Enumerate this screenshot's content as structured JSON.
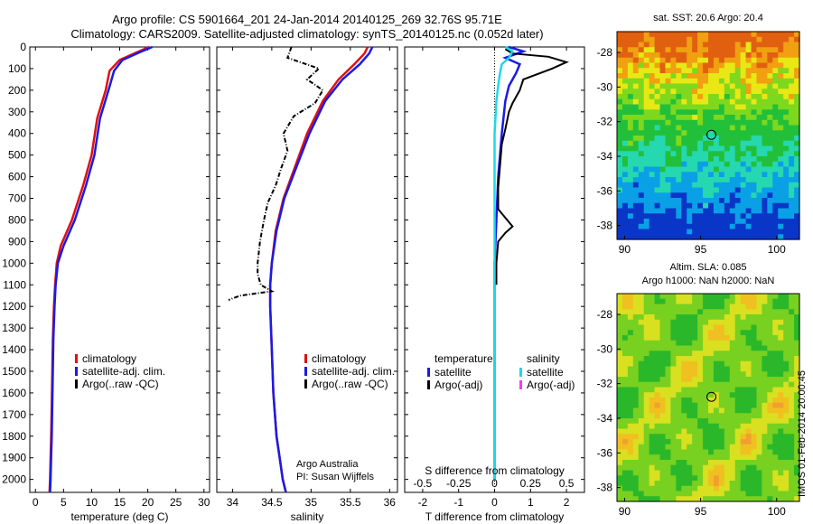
{
  "header": {
    "title_line1": "Argo profile: CS 5901664_201 24-Jan-2014 20140125_269 32.76S 95.71E",
    "title_line2": "Climatology: CARS2009. Satellite-adjusted climatology: synTS_20140125.nc (0.052d later)"
  },
  "credits": {
    "line1": "Argo Australia",
    "line2": "PI: Susan Wijffels"
  },
  "footer_stamp": "IMOS 01-Feb-2014 20:00:45",
  "colors": {
    "climatology": "#e01010",
    "satellite": "#1a1ae6",
    "argo": "#000000",
    "s_satellite": "#1fd8e6",
    "s_argo": "#ff33ff"
  },
  "chart_data": [
    {
      "id": "temperature",
      "type": "line",
      "xlabel": "temperature (deg C)",
      "ylabel": "",
      "xlim": [
        -1,
        31
      ],
      "ylim": [
        2060,
        0
      ],
      "xticks": [
        0,
        5,
        10,
        15,
        20,
        25,
        30
      ],
      "yticks": [
        0,
        100,
        200,
        300,
        400,
        500,
        600,
        700,
        800,
        900,
        1000,
        1100,
        1200,
        1300,
        1400,
        1500,
        1600,
        1700,
        1800,
        1900,
        2000
      ],
      "legend": [
        "climatology",
        "satellite-adj. clim.",
        "Argo(..raw -QC)"
      ],
      "series": [
        {
          "name": "climatology",
          "color": "#e01010",
          "x": [
            20.2,
            18,
            15,
            13.2,
            12.5,
            11,
            10,
            8.5,
            6.5,
            4.5,
            3.8,
            3.5,
            3.3,
            3.1,
            3,
            2.9,
            2.8,
            2.7,
            2.6,
            2.5
          ],
          "y": [
            0,
            25,
            60,
            110,
            200,
            330,
            500,
            640,
            800,
            920,
            1000,
            1100,
            1200,
            1350,
            1500,
            1650,
            1800,
            1900,
            2000,
            2060
          ]
        },
        {
          "name": "satellite-adj. clim.",
          "color": "#1a1ae6",
          "x": [
            20.8,
            18.5,
            15.5,
            14,
            13,
            11.5,
            10.5,
            9,
            7,
            5,
            4,
            3.6,
            3.4,
            3.2,
            3.1,
            3,
            2.9,
            2.8,
            2.7,
            2.6
          ],
          "y": [
            0,
            25,
            60,
            110,
            200,
            330,
            500,
            640,
            800,
            920,
            1000,
            1100,
            1200,
            1350,
            1500,
            1650,
            1800,
            1900,
            2000,
            2060
          ]
        }
      ]
    },
    {
      "id": "salinity",
      "type": "line",
      "xlabel": "salinity",
      "ylabel": "",
      "xlim": [
        33.8,
        36.1
      ],
      "ylim": [
        2060,
        0
      ],
      "xticks": [
        34,
        34.5,
        35,
        35.5,
        36
      ],
      "legend": [
        "climatology",
        "satellite-adj. clim.",
        "Argo(..raw -QC)"
      ],
      "series": [
        {
          "name": "climatology",
          "color": "#e01010",
          "x": [
            35.72,
            35.68,
            35.55,
            35.35,
            35.15,
            34.95,
            34.8,
            34.65,
            34.55,
            34.5,
            34.48,
            34.48,
            34.5,
            34.52,
            34.56,
            34.6,
            34.64,
            34.68
          ],
          "y": [
            0,
            30,
            80,
            150,
            250,
            400,
            550,
            700,
            850,
            1000,
            1100,
            1200,
            1400,
            1600,
            1800,
            1900,
            2000,
            2060
          ]
        },
        {
          "name": "satellite-adj. clim.",
          "color": "#1a1ae6",
          "x": [
            35.78,
            35.74,
            35.62,
            35.4,
            35.18,
            34.98,
            34.82,
            34.66,
            34.56,
            34.5,
            34.48,
            34.48,
            34.5,
            34.52,
            34.56,
            34.6,
            34.64,
            34.68
          ],
          "y": [
            0,
            30,
            80,
            150,
            250,
            400,
            550,
            700,
            850,
            1000,
            1100,
            1200,
            1400,
            1600,
            1800,
            1900,
            2000,
            2060
          ]
        },
        {
          "name": "Argo(..raw -QC)",
          "color": "#000000",
          "dashed": true,
          "x": [
            34.75,
            34.7,
            35.1,
            34.95,
            35.15,
            35.05,
            34.78,
            34.65,
            34.7,
            34.62,
            34.55,
            34.45,
            34.4,
            34.35,
            34.32,
            34.32,
            34.36,
            34.5,
            34.1,
            33.95
          ],
          "y": [
            0,
            50,
            100,
            150,
            200,
            260,
            320,
            400,
            480,
            560,
            640,
            720,
            800,
            900,
            1000,
            1050,
            1100,
            1130,
            1150,
            1170
          ]
        }
      ]
    },
    {
      "id": "difference",
      "type": "line",
      "xlabel": "T difference from climatology",
      "xlabel_top": "S difference from climatology",
      "xlim": [
        -2.5,
        2.5
      ],
      "ylim": [
        2060,
        0
      ],
      "xticks": [
        -2,
        -1,
        0,
        1,
        2
      ],
      "xticks_s": [
        -0.5,
        -0.25,
        0,
        0.25,
        0.5
      ],
      "legend_temperature_title": "temperature",
      "legend_salinity_title": "salinity",
      "legend": [
        "satellite",
        "Argo(-adj)",
        "satellite",
        "Argo(-adj)"
      ],
      "series": [
        {
          "name": "satellite",
          "color": "#1a1ae6",
          "x": [
            0.4,
            0.8,
            0.3,
            0.7,
            0.6,
            0.4,
            0.3,
            0.2,
            0.1,
            0.05,
            0,
            0,
            0,
            0,
            0,
            0
          ],
          "y": [
            0,
            20,
            50,
            80,
            120,
            180,
            250,
            400,
            600,
            800,
            1000,
            1200,
            1400,
            1600,
            1800,
            2000
          ]
        },
        {
          "name": "Argo(-adj)",
          "color": "#000000",
          "x": [
            0.3,
            0.5,
            1.5,
            2,
            1.6,
            0.8,
            0.7,
            0.5,
            0.4,
            0.3,
            0.2,
            0.15,
            0.1,
            0.1,
            0.5,
            0.3,
            0.1,
            0.05,
            0.05
          ],
          "y": [
            10,
            30,
            45,
            70,
            100,
            150,
            200,
            260,
            300,
            380,
            450,
            550,
            650,
            750,
            830,
            860,
            900,
            1000,
            1100
          ]
        },
        {
          "name": "satellite",
          "color": "#1fd8e6",
          "x": [
            0.3,
            0.5,
            0.4,
            0.2,
            0.15,
            0.1,
            0.05,
            0,
            0,
            0,
            0,
            0,
            0,
            0,
            0,
            0
          ],
          "y": [
            0,
            20,
            50,
            80,
            120,
            180,
            250,
            400,
            600,
            800,
            1000,
            1200,
            1400,
            1600,
            1800,
            2000
          ]
        }
      ]
    },
    {
      "id": "map_sst",
      "type": "heatmap",
      "title": "sat. SST: 20.6  Argo: 20.4",
      "xticks": [
        90,
        95,
        100
      ],
      "yticks": [
        -28,
        -30,
        -32,
        -34,
        -36,
        -38
      ],
      "xlim": [
        89.5,
        101.5
      ],
      "ylim": [
        -38.8,
        -26.8
      ],
      "marker": {
        "lon": 95.71,
        "lat": -32.76
      }
    },
    {
      "id": "map_sla",
      "type": "heatmap",
      "title": "Altim. SLA: 0.085",
      "subtitle": "Argo h1000: NaN  h2000: NaN",
      "xticks": [
        90,
        95,
        100
      ],
      "yticks": [
        -28,
        -30,
        -32,
        -34,
        -36,
        -38
      ],
      "xlim": [
        89.5,
        101.5
      ],
      "ylim": [
        -38.8,
        -26.8
      ],
      "marker": {
        "lon": 95.71,
        "lat": -32.76
      }
    }
  ]
}
